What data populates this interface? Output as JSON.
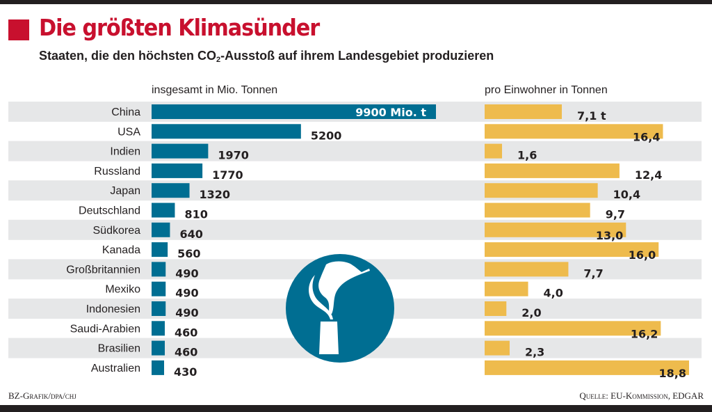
{
  "header": {
    "title": "Die größten Klimasünder",
    "subtitle_pre": "Staaten, die den höchsten CO",
    "subtitle_sub": "2",
    "subtitle_post": "-Ausstoß auf ihrem Landesgebiet produzieren"
  },
  "colors": {
    "accent_red": "#c8102e",
    "bar_total": "#006e92",
    "bar_per_capita": "#eebb4d",
    "stripe": "#e6e7e8",
    "icon_bg": "#006e92"
  },
  "icon": "factory-smokestack-icon",
  "footer": {
    "credit": "BZ-Grafik/dpa/chj",
    "source": "Quelle: EU-Kommission, EDGAR"
  },
  "chart_data": [
    {
      "type": "bar",
      "orientation": "horizontal",
      "title": "insgesamt in Mio. Tonnen",
      "unit": "Mio. t",
      "categories": [
        "China",
        "USA",
        "Indien",
        "Russland",
        "Japan",
        "Deutschland",
        "Südkorea",
        "Kanada",
        "Großbritannien",
        "Mexiko",
        "Indonesien",
        "Saudi-Arabien",
        "Brasilien",
        "Australien"
      ],
      "values": [
        9900,
        5200,
        1970,
        1770,
        1320,
        810,
        640,
        560,
        490,
        490,
        490,
        460,
        460,
        430
      ],
      "labels": [
        "9900 Mio. t",
        "5200",
        "1970",
        "1770",
        "1320",
        "810",
        "640",
        "560",
        "490",
        "490",
        "490",
        "460",
        "460",
        "430"
      ],
      "xlim": [
        0,
        9900
      ],
      "grid": false
    },
    {
      "type": "bar",
      "orientation": "horizontal",
      "title": "pro Einwohner in Tonnen",
      "unit": "t",
      "categories": [
        "China",
        "USA",
        "Indien",
        "Russland",
        "Japan",
        "Deutschland",
        "Südkorea",
        "Kanada",
        "Großbritannien",
        "Mexiko",
        "Indonesien",
        "Saudi-Arabien",
        "Brasilien",
        "Australien"
      ],
      "values": [
        7.1,
        16.4,
        1.6,
        12.4,
        10.4,
        9.7,
        13.0,
        16.0,
        7.7,
        4.0,
        2.0,
        16.2,
        2.3,
        18.8
      ],
      "labels": [
        "7,1 t",
        "16,4",
        "1,6",
        "12,4",
        "10,4",
        "9,7",
        "13,0",
        "16,0",
        "7,7",
        "4,0",
        "2,0",
        "16,2",
        "2,3",
        "18,8"
      ],
      "xlim": [
        0,
        18.8
      ],
      "grid": false
    }
  ]
}
